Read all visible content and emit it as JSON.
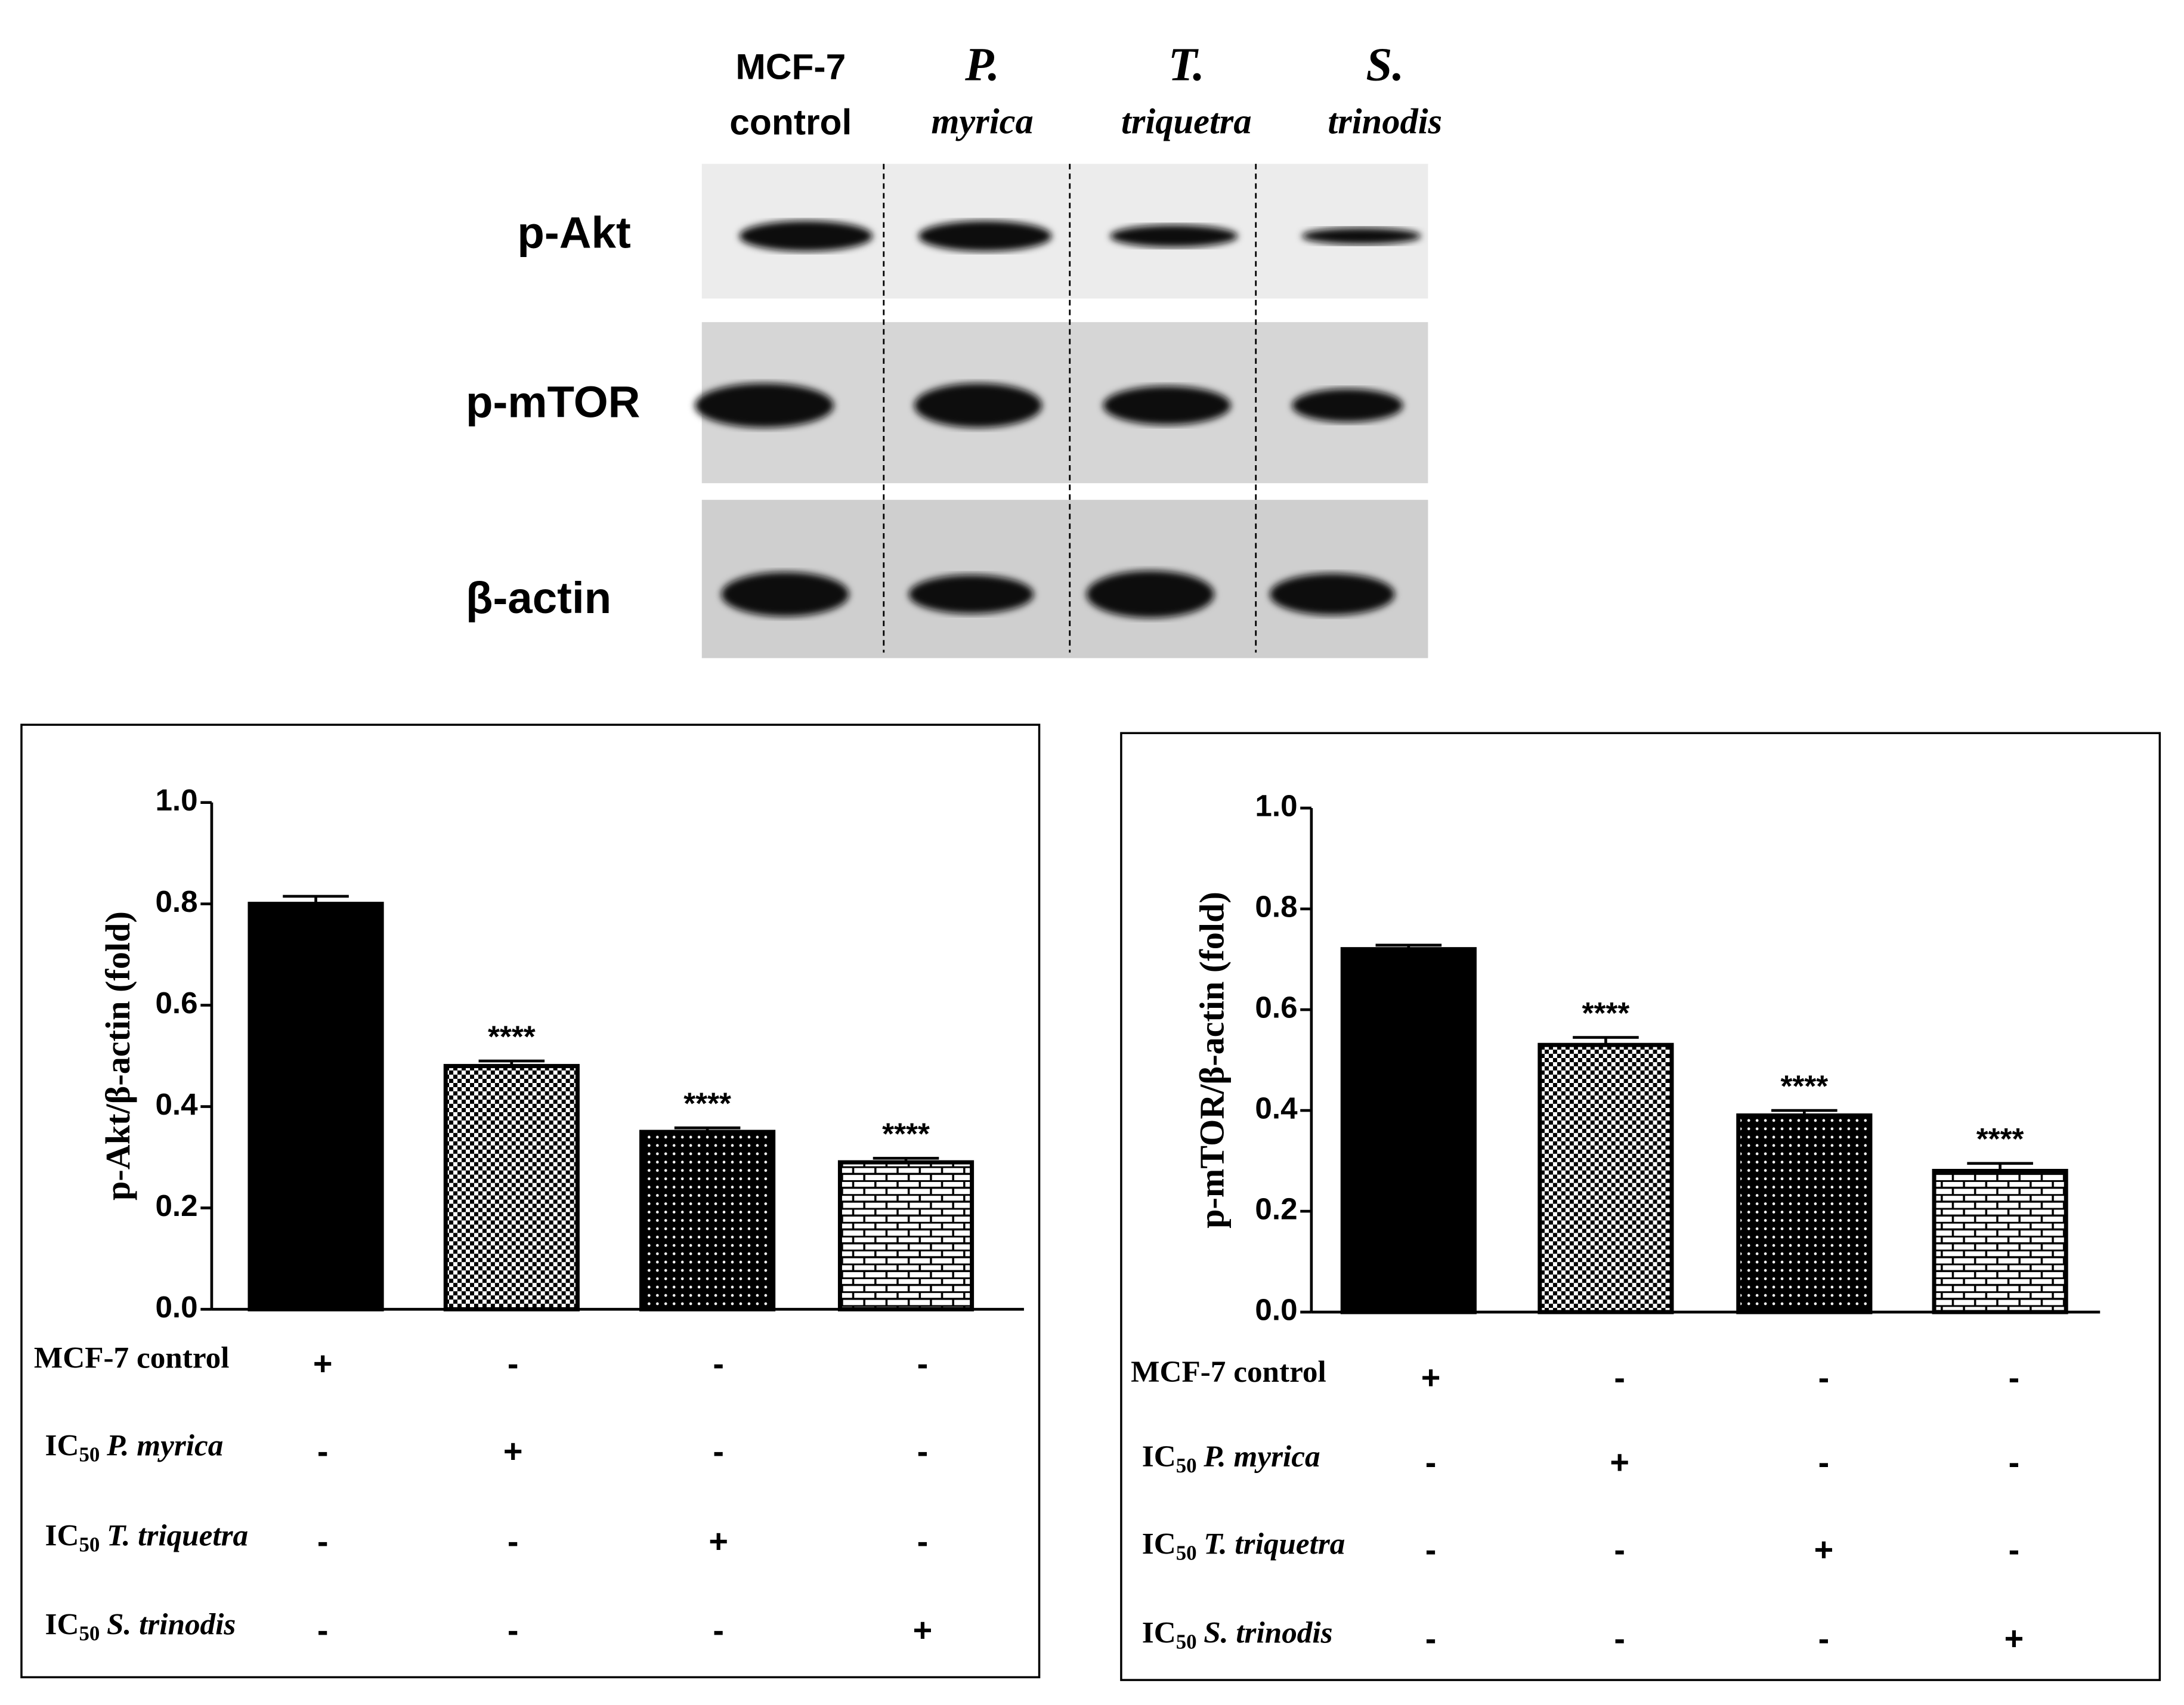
{
  "blot": {
    "columns": [
      [
        "MCF-7",
        "control"
      ],
      [
        "P.",
        "myrica"
      ],
      [
        "T.",
        "triquetra"
      ],
      [
        "S.",
        "trinodis"
      ]
    ],
    "rows": [
      "p-Akt",
      "p-mTOR",
      "β-actin"
    ]
  },
  "chart_data": [
    {
      "type": "bar",
      "ylabel": "p-Akt/β-actin (fold)",
      "categories": [
        "MCF-7 control",
        "P. myrica",
        "T. triquetra",
        "S. trinodis"
      ],
      "values": [
        0.8,
        0.48,
        0.35,
        0.29
      ],
      "errors": [
        0.015,
        0.01,
        0.008,
        0.008
      ],
      "significance": [
        null,
        "****",
        "****",
        "****"
      ],
      "fills": [
        "solid",
        "checker",
        "dots",
        "brick"
      ],
      "color": "#000000",
      "ylim": [
        0,
        1
      ],
      "yticks": [
        {
          "value": 0,
          "label": "0.0"
        },
        {
          "value": 0.2,
          "label": "0.2"
        },
        {
          "value": 0.4,
          "label": "0.4"
        },
        {
          "value": 0.6,
          "label": "0.6"
        },
        {
          "value": 0.8,
          "label": "0.8"
        },
        {
          "value": 1,
          "label": "1.0"
        }
      ],
      "conditions": [
        {
          "label": {
            "text": "MCF-7 control"
          },
          "marks": [
            "+",
            "-",
            "-",
            "-"
          ]
        },
        {
          "label": {
            "text": "IC",
            "sub": "50",
            "italic": "P. myrica"
          },
          "marks": [
            "-",
            "+",
            "-",
            "-"
          ]
        },
        {
          "label": {
            "text": "IC",
            "sub": "50",
            "italic": "T. triquetra"
          },
          "marks": [
            "-",
            "-",
            "+",
            "-"
          ]
        },
        {
          "label": {
            "text": "IC",
            "sub": "50",
            "italic": "S. trinodis"
          },
          "marks": [
            "-",
            "-",
            "-",
            "+"
          ]
        }
      ]
    },
    {
      "type": "bar",
      "ylabel": "p-mTOR/β-actin (fold)",
      "categories": [
        "MCF-7 control",
        "P. myrica",
        "T. triquetra",
        "S. trinodis"
      ],
      "values": [
        0.72,
        0.53,
        0.39,
        0.28
      ],
      "errors": [
        0.008,
        0.015,
        0.01,
        0.015
      ],
      "significance": [
        null,
        "****",
        "****",
        "****"
      ],
      "fills": [
        "solid",
        "checker",
        "dots",
        "brick"
      ],
      "color": "#000000",
      "ylim": [
        0,
        1
      ],
      "yticks": [
        {
          "value": 0,
          "label": "0.0"
        },
        {
          "value": 0.2,
          "label": "0.2"
        },
        {
          "value": 0.4,
          "label": "0.4"
        },
        {
          "value": 0.6,
          "label": "0.6"
        },
        {
          "value": 0.8,
          "label": "0.8"
        },
        {
          "value": 1,
          "label": "1.0"
        }
      ],
      "conditions": [
        {
          "label": {
            "text": "MCF-7 control"
          },
          "marks": [
            "+",
            "-",
            "-",
            "-"
          ]
        },
        {
          "label": {
            "text": "IC",
            "sub": "50",
            "italic": "P. myrica"
          },
          "marks": [
            "-",
            "+",
            "-",
            "-"
          ]
        },
        {
          "label": {
            "text": "IC",
            "sub": "50",
            "italic": "T. triquetra"
          },
          "marks": [
            "-",
            "-",
            "+",
            "-"
          ]
        },
        {
          "label": {
            "text": "IC",
            "sub": "50",
            "italic": "S. trinodis"
          },
          "marks": [
            "-",
            "-",
            "-",
            "+"
          ]
        }
      ]
    }
  ]
}
